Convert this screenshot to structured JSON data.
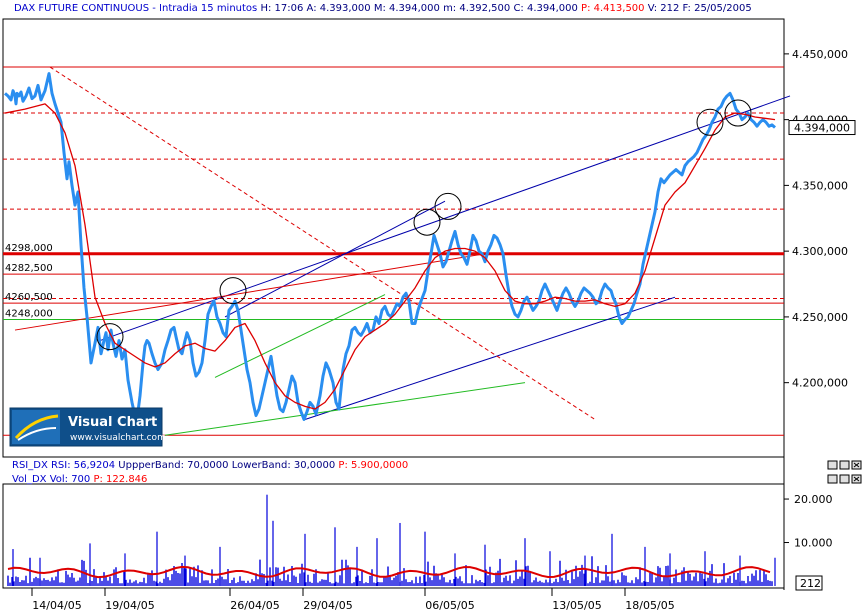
{
  "header": {
    "parts": [
      {
        "text": "DAX FUTURE CONTINUOUS - Intradia 15 minutos",
        "color": "#0000cc"
      },
      {
        "text": "H: 17:06",
        "color": "#000080"
      },
      {
        "text": "A: 4.393,000",
        "color": "#000080"
      },
      {
        "text": "M: 4.394,000",
        "color": "#000080"
      },
      {
        "text": "m: 4.392,500",
        "color": "#000080"
      },
      {
        "text": "C: 4.394,000",
        "color": "#000080"
      },
      {
        "text": "P: 4.413,500",
        "color": "#ff0000"
      },
      {
        "text": "V: 212",
        "color": "#000080"
      },
      {
        "text": "F: 25/05/2005",
        "color": "#000080"
      }
    ]
  },
  "rsi_header": {
    "parts": [
      {
        "text": "RSI_DX RSI: 56,9204",
        "color": "#0000cc"
      },
      {
        "text": "UppperBand: 70,0000",
        "color": "#000080"
      },
      {
        "text": "LowerBand: 30,0000",
        "color": "#000080"
      },
      {
        "text": "P: 5.900,0000",
        "color": "#ff0000"
      }
    ]
  },
  "vol_header": {
    "parts": [
      {
        "text": "Vol_DX Vol: 700",
        "color": "#0000cc"
      },
      {
        "text": "P: 122.846",
        "color": "#ff0000"
      }
    ]
  },
  "logo": {
    "title": "Visual Chart",
    "url": "www.visualchart.com"
  },
  "colors": {
    "price": "#2a8ef0",
    "ma": "#dd0000",
    "channel": "#0000aa",
    "green": "#22bb22",
    "level": "#dd0000",
    "volume": "#0000dd"
  },
  "chart_data": [
    {
      "type": "line",
      "title": "DAX FUTURE CONTINUOUS - Intradia 15 minutos",
      "x_ticks": [
        "14/04/05",
        "19/04/05",
        "26/04/05",
        "29/04/05",
        "06/05/05",
        "13/05/05",
        "18/05/05"
      ],
      "y_ticks": [
        "4.200,000",
        "4.250,000",
        "4.300,000",
        "4.350,000",
        "4.400,000",
        "4.450,000"
      ],
      "y_tick_values": [
        4200,
        4250,
        4300,
        4350,
        4400,
        4450
      ],
      "ylim": [
        4145,
        4475
      ],
      "last_value": "4.394,000",
      "level_labels": [
        {
          "text": "4298,000",
          "value": 4298
        },
        {
          "text": "4282,500",
          "value": 4282.5
        },
        {
          "text": "4260,500",
          "value": 4260.5
        },
        {
          "text": "4248,000",
          "value": 4248
        }
      ],
      "horizontal_levels": [
        {
          "value": 4440,
          "style": "solid",
          "width": 1
        },
        {
          "value": 4405,
          "style": "dashed",
          "width": 1
        },
        {
          "value": 4370,
          "style": "dashed",
          "width": 1
        },
        {
          "value": 4332,
          "style": "dashed",
          "width": 1
        },
        {
          "value": 4298,
          "style": "solid",
          "width": 3
        },
        {
          "value": 4282.5,
          "style": "solid",
          "width": 1
        },
        {
          "value": 4264,
          "style": "dashed",
          "width": 1
        },
        {
          "value": 4260.5,
          "style": "solid",
          "width": 1
        },
        {
          "value": 4248,
          "style": "solid",
          "width": 1,
          "color": "green"
        },
        {
          "value": 4160,
          "style": "solid",
          "width": 1
        }
      ],
      "series": [
        {
          "name": "price",
          "x": [
            0,
            3,
            6,
            8,
            10,
            11,
            12,
            14,
            16,
            18,
            21,
            24,
            27,
            30,
            33,
            36,
            40,
            44,
            47,
            50,
            53,
            56,
            59,
            62,
            64,
            67,
            70,
            73,
            76,
            79,
            82,
            86,
            90,
            93,
            96,
            99,
            101,
            103,
            106,
            108,
            111,
            114,
            117,
            120,
            123,
            127,
            129,
            132,
            135,
            138,
            140,
            142,
            144,
            147,
            150,
            153,
            157,
            160,
            163,
            166,
            169,
            171,
            174,
            177,
            180,
            182,
            185,
            188,
            191,
            194,
            197,
            200,
            203,
            206,
            209,
            212,
            215,
            218,
            221,
            224,
            227,
            230,
            233,
            236,
            239,
            242,
            245,
            248,
            251,
            254,
            257,
            260,
            263,
            266,
            269,
            272,
            275,
            278,
            281,
            284,
            287,
            290,
            293,
            296,
            299,
            302,
            305,
            308,
            311,
            315,
            318,
            321,
            324,
            328,
            331,
            334,
            338,
            341,
            344,
            347,
            350,
            353,
            356,
            359,
            362,
            365,
            368,
            371,
            374,
            377,
            380,
            383,
            386,
            389,
            392,
            395,
            398,
            401,
            404,
            407,
            410,
            413,
            416,
            420,
            423,
            426,
            429,
            432,
            435,
            438,
            441,
            444,
            447,
            450,
            453,
            456,
            459,
            462,
            465,
            468,
            471,
            474,
            477,
            480,
            483,
            486,
            489,
            492,
            495,
            498,
            501,
            504,
            507,
            510,
            513,
            516,
            519,
            522,
            525,
            528,
            531,
            534,
            537,
            540,
            543,
            546,
            549,
            552,
            555,
            558,
            561,
            564,
            567,
            570,
            573,
            576,
            579,
            582,
            585,
            588,
            591,
            594,
            597,
            600,
            603,
            606,
            608,
            611,
            614,
            617,
            620,
            623,
            626,
            629,
            632,
            635,
            638,
            641,
            644,
            647,
            650,
            653,
            656,
            659,
            662,
            665,
            668,
            671,
            674,
            677,
            680,
            683,
            686,
            689,
            692,
            695,
            698,
            701,
            704,
            707,
            710,
            713,
            716,
            719,
            722,
            725,
            728,
            731,
            734,
            737,
            740,
            743,
            746,
            749,
            752,
            755,
            758,
            761,
            764,
            767,
            770
          ],
          "y": [
            4420,
            4418,
            4415,
            4422,
            4418,
            4412,
            4420,
            4418,
            4421,
            4414,
            4418,
            4424,
            4416,
            4418,
            4426,
            4415,
            4422,
            4435,
            4420,
            4412,
            4405,
            4398,
            4375,
            4355,
            4368,
            4350,
            4335,
            4345,
            4305,
            4272,
            4250,
            4215,
            4230,
            4242,
            4222,
            4232,
            4238,
            4225,
            4240,
            4230,
            4220,
            4232,
            4218,
            4225,
            4202,
            4185,
            4178,
            4172,
            4190,
            4215,
            4228,
            4232,
            4230,
            4222,
            4215,
            4210,
            4215,
            4225,
            4232,
            4240,
            4242,
            4235,
            4225,
            4222,
            4232,
            4238,
            4232,
            4215,
            4205,
            4208,
            4215,
            4232,
            4252,
            4258,
            4262,
            4250,
            4245,
            4238,
            4235,
            4255,
            4258,
            4262,
            4255,
            4240,
            4225,
            4210,
            4200,
            4185,
            4175,
            4180,
            4190,
            4200,
            4210,
            4220,
            4205,
            4190,
            4180,
            4178,
            4185,
            4195,
            4205,
            4200,
            4185,
            4178,
            4172,
            4178,
            4185,
            4182,
            4176,
            4190,
            4205,
            4215,
            4210,
            4200,
            4185,
            4180,
            4210,
            4222,
            4228,
            4240,
            4242,
            4238,
            4236,
            4240,
            4245,
            4238,
            4240,
            4250,
            4245,
            4255,
            4258,
            4252,
            4250,
            4255,
            4260,
            4258,
            4265,
            4268,
            4262,
            4245,
            4245,
            4255,
            4262,
            4270,
            4285,
            4298,
            4312,
            4305,
            4298,
            4288,
            4292,
            4300,
            4308,
            4315,
            4305,
            4298,
            4295,
            4290,
            4300,
            4312,
            4308,
            4300,
            4298,
            4292,
            4300,
            4305,
            4312,
            4310,
            4305,
            4298,
            4282,
            4268,
            4258,
            4252,
            4250,
            4255,
            4262,
            4265,
            4260,
            4255,
            4258,
            4262,
            4270,
            4275,
            4270,
            4265,
            4260,
            4255,
            4262,
            4268,
            4272,
            4268,
            4262,
            4258,
            4262,
            4268,
            4272,
            4270,
            4268,
            4265,
            4260,
            4262,
            4270,
            4275,
            4272,
            4270,
            4265,
            4260,
            4250,
            4245,
            4248,
            4250,
            4255,
            4260,
            4268,
            4275,
            4290,
            4300,
            4310,
            4320,
            4330,
            4345,
            4355,
            4352,
            4355,
            4358,
            4360,
            4362,
            4360,
            4358,
            4365,
            4368,
            4370,
            4372,
            4375,
            4380,
            4385,
            4388,
            4392,
            4398,
            4402,
            4408,
            4410,
            4415,
            4418,
            4420,
            4415,
            4408,
            4405,
            4400,
            4402,
            4405,
            4400,
            4398,
            4395,
            4398,
            4400,
            4398,
            4395,
            4396,
            4394
          ]
        },
        {
          "name": "MA",
          "x": [
            0,
            20,
            40,
            50,
            60,
            70,
            80,
            90,
            100,
            110,
            120,
            130,
            140,
            150,
            160,
            170,
            180,
            190,
            200,
            210,
            220,
            230,
            240,
            250,
            260,
            270,
            280,
            290,
            300,
            310,
            320,
            330,
            340,
            350,
            360,
            370,
            380,
            390,
            400,
            410,
            420,
            430,
            440,
            450,
            460,
            470,
            480,
            490,
            500,
            510,
            520,
            530,
            540,
            550,
            560,
            570,
            580,
            590,
            600,
            610,
            620,
            630,
            640,
            650,
            660,
            670,
            680,
            690,
            700,
            710,
            720,
            730,
            740,
            750,
            760,
            770
          ],
          "y": [
            4405,
            4408,
            4412,
            4405,
            4390,
            4365,
            4320,
            4265,
            4245,
            4230,
            4225,
            4220,
            4215,
            4212,
            4215,
            4222,
            4228,
            4230,
            4226,
            4224,
            4232,
            4242,
            4245,
            4232,
            4215,
            4200,
            4190,
            4185,
            4182,
            4180,
            4185,
            4195,
            4210,
            4225,
            4235,
            4240,
            4245,
            4252,
            4262,
            4272,
            4285,
            4295,
            4300,
            4302,
            4302,
            4300,
            4295,
            4285,
            4270,
            4262,
            4260,
            4260,
            4262,
            4265,
            4264,
            4262,
            4262,
            4263,
            4260,
            4258,
            4260,
            4268,
            4285,
            4310,
            4335,
            4345,
            4352,
            4365,
            4378,
            4392,
            4402,
            4405,
            4404,
            4402,
            4401,
            4400
          ]
        }
      ],
      "trendlines": [
        {
          "name": "upper-channel",
          "x": [
            95,
            785
          ],
          "y": [
            4232,
            4418
          ],
          "color": "channel"
        },
        {
          "name": "lower-channel",
          "x": [
            300,
            670
          ],
          "y": [
            4172,
            4265
          ],
          "color": "channel"
        },
        {
          "name": "inner-channel",
          "x": [
            220,
            440
          ],
          "y": [
            4250,
            4338
          ],
          "color": "channel"
        },
        {
          "name": "red-resistance",
          "x": [
            10,
            480
          ],
          "y": [
            4240,
            4298
          ],
          "color": "level"
        },
        {
          "name": "green-support",
          "x": [
            160,
            520
          ],
          "y": [
            4160,
            4200
          ],
          "color": "green"
        },
        {
          "name": "green-inner",
          "x": [
            210,
            380
          ],
          "y": [
            4204,
            4267
          ],
          "color": "green"
        }
      ],
      "dashed_trendline": {
        "x": [
          45,
          590
        ],
        "y": [
          4440,
          4172
        ]
      },
      "circles": [
        {
          "x": 105,
          "y": 4235
        },
        {
          "x": 228,
          "y": 4270
        },
        {
          "x": 422,
          "y": 4322
        },
        {
          "x": 443,
          "y": 4334
        },
        {
          "x": 705,
          "y": 4398
        },
        {
          "x": 733,
          "y": 4405
        }
      ]
    },
    {
      "type": "bar",
      "title": "Vol_DX Vol: 700",
      "y_ticks": [
        "10.000",
        "20.000"
      ],
      "y_tick_values": [
        10000,
        20000
      ],
      "ylim": [
        0,
        23000
      ],
      "last_value": "212",
      "spike_x": [
        8,
        35,
        85,
        120,
        152,
        180,
        215,
        262,
        268,
        300,
        330,
        352,
        372,
        395,
        420,
        450,
        480,
        520,
        545,
        580,
        607,
        640,
        665,
        700,
        735,
        770
      ],
      "spike_values": [
        8500,
        6500,
        9800,
        7500,
        12500,
        7000,
        9000,
        21000,
        15000,
        12000,
        13500,
        9000,
        11000,
        14500,
        12500,
        7500,
        9500,
        11000,
        8000,
        7000,
        12000,
        9000,
        7500,
        8000,
        7000,
        6500
      ],
      "avg_level": 3200
    }
  ]
}
